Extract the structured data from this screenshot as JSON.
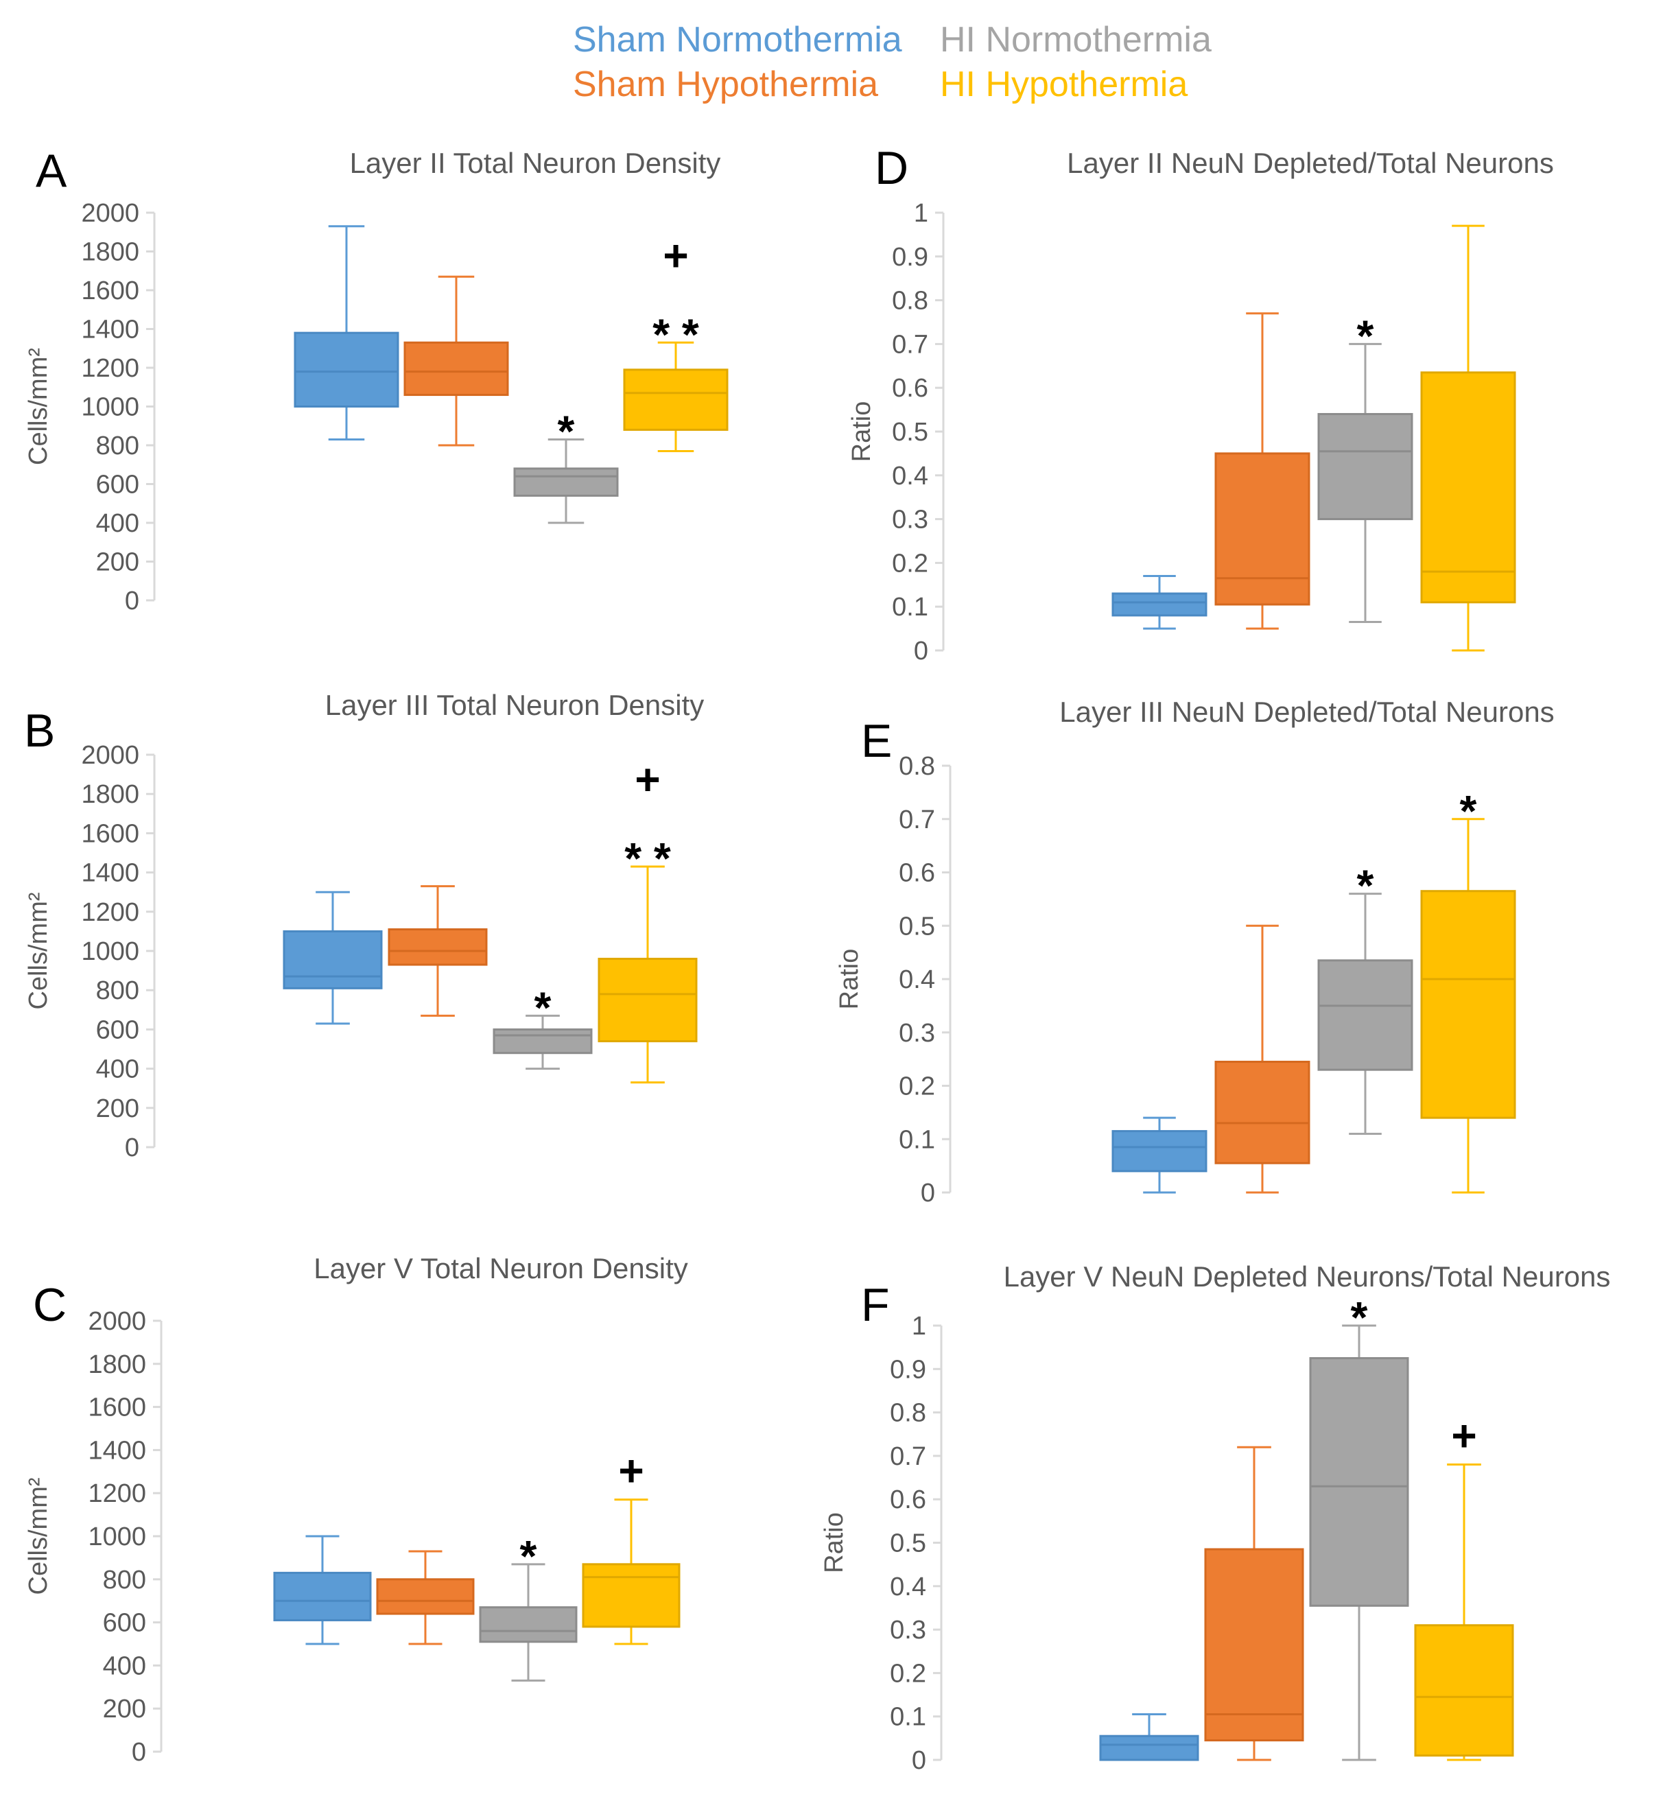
{
  "legend": [
    {
      "label": "Sham Normothermia",
      "color": "#5B9BD5"
    },
    {
      "label": "HI Normothermia",
      "color": "#A5A5A5"
    },
    {
      "label": "Sham Hypothermia",
      "color": "#ED7D31"
    },
    {
      "label": "HI Hypothermia",
      "color": "#FFC000"
    }
  ],
  "chart_data": [
    {
      "type": "box",
      "panel": "A",
      "title": "Layer II Total Neuron Density",
      "ylabel": "Cells/mm²",
      "ylim": [
        0,
        2000
      ],
      "ticks": [
        "0",
        "200",
        "400",
        "600",
        "800",
        "1000",
        "1200",
        "1400",
        "1600",
        "1800",
        "2000"
      ],
      "series": [
        {
          "name": "Sham Normothermia",
          "min": 830,
          "q1": 1000,
          "median": 1180,
          "q3": 1380,
          "max": 1930,
          "annotations": []
        },
        {
          "name": "Sham Hypothermia",
          "min": 800,
          "q1": 1060,
          "median": 1180,
          "q3": 1330,
          "max": 1670,
          "annotations": []
        },
        {
          "name": "HI Normothermia",
          "min": 400,
          "q1": 540,
          "median": 640,
          "q3": 680,
          "max": 830,
          "annotations": [
            "*"
          ]
        },
        {
          "name": "HI Hypothermia",
          "min": 770,
          "q1": 880,
          "median": 1070,
          "q3": 1190,
          "max": 1330,
          "annotations": [
            "**",
            "+"
          ]
        }
      ]
    },
    {
      "type": "box",
      "panel": "B",
      "title": "Layer III Total Neuron Density",
      "ylabel": "Cells/mm²",
      "ylim": [
        0,
        2000
      ],
      "ticks": [
        "0",
        "200",
        "400",
        "600",
        "800",
        "1000",
        "1200",
        "1400",
        "1600",
        "1800",
        "2000"
      ],
      "series": [
        {
          "name": "Sham Normothermia",
          "min": 630,
          "q1": 810,
          "median": 870,
          "q3": 1100,
          "max": 1300,
          "annotations": []
        },
        {
          "name": "Sham Hypothermia",
          "min": 670,
          "q1": 930,
          "median": 1000,
          "q3": 1110,
          "max": 1330,
          "annotations": []
        },
        {
          "name": "HI Normothermia",
          "min": 400,
          "q1": 480,
          "median": 570,
          "q3": 600,
          "max": 670,
          "annotations": [
            "*"
          ]
        },
        {
          "name": "HI Hypothermia",
          "min": 330,
          "q1": 540,
          "median": 780,
          "q3": 960,
          "max": 1430,
          "annotations": [
            "**",
            "+"
          ]
        }
      ]
    },
    {
      "type": "box",
      "panel": "C",
      "title": "Layer V Total Neuron Density",
      "ylabel": "Cells/mm²",
      "ylim": [
        0,
        2000
      ],
      "ticks": [
        "0",
        "200",
        "400",
        "600",
        "800",
        "1000",
        "1200",
        "1400",
        "1600",
        "1800",
        "2000"
      ],
      "series": [
        {
          "name": "Sham Normothermia",
          "min": 500,
          "q1": 610,
          "median": 700,
          "q3": 830,
          "max": 1000,
          "annotations": []
        },
        {
          "name": "Sham Hypothermia",
          "min": 500,
          "q1": 640,
          "median": 700,
          "q3": 800,
          "max": 930,
          "annotations": []
        },
        {
          "name": "HI Normothermia",
          "min": 330,
          "q1": 510,
          "median": 560,
          "q3": 670,
          "max": 870,
          "annotations": [
            "*"
          ]
        },
        {
          "name": "HI Hypothermia",
          "min": 500,
          "q1": 580,
          "median": 810,
          "q3": 870,
          "max": 1170,
          "annotations": [
            "+"
          ]
        }
      ]
    },
    {
      "type": "box",
      "panel": "D",
      "title": "Layer II NeuN Depleted/Total Neurons",
      "ylabel": "Ratio",
      "ylim": [
        0,
        1
      ],
      "ticks": [
        "0",
        "0.1",
        "0.2",
        "0.3",
        "0.4",
        "0.5",
        "0.6",
        "0.7",
        "0.8",
        "0.9",
        "1"
      ],
      "series": [
        {
          "name": "Sham Normothermia",
          "min": 0.05,
          "q1": 0.08,
          "median": 0.11,
          "q3": 0.13,
          "max": 0.17,
          "annotations": []
        },
        {
          "name": "Sham Hypothermia",
          "min": 0.05,
          "q1": 0.105,
          "median": 0.165,
          "q3": 0.45,
          "max": 0.77,
          "annotations": []
        },
        {
          "name": "HI Normothermia",
          "min": 0.065,
          "q1": 0.3,
          "median": 0.455,
          "q3": 0.54,
          "max": 0.7,
          "annotations": [
            "*"
          ]
        },
        {
          "name": "HI Hypothermia",
          "min": 0.0,
          "q1": 0.11,
          "median": 0.18,
          "q3": 0.635,
          "max": 0.97,
          "annotations": []
        }
      ]
    },
    {
      "type": "box",
      "panel": "E",
      "title": "Layer III NeuN Depleted/Total Neurons",
      "ylabel": "Ratio",
      "ylim": [
        0,
        0.8
      ],
      "ticks": [
        "0",
        "0.1",
        "0.2",
        "0.3",
        "0.4",
        "0.5",
        "0.6",
        "0.7",
        "0.8"
      ],
      "series": [
        {
          "name": "Sham Normothermia",
          "min": 0.0,
          "q1": 0.04,
          "median": 0.085,
          "q3": 0.115,
          "max": 0.14,
          "annotations": []
        },
        {
          "name": "Sham Hypothermia",
          "min": 0.0,
          "q1": 0.055,
          "median": 0.13,
          "q3": 0.245,
          "max": 0.5,
          "annotations": []
        },
        {
          "name": "HI Normothermia",
          "min": 0.11,
          "q1": 0.23,
          "median": 0.35,
          "q3": 0.435,
          "max": 0.56,
          "annotations": [
            "*"
          ]
        },
        {
          "name": "HI Hypothermia",
          "min": 0.0,
          "q1": 0.14,
          "median": 0.4,
          "q3": 0.565,
          "max": 0.7,
          "annotations": [
            "*"
          ]
        }
      ]
    },
    {
      "type": "box",
      "panel": "F",
      "title": "Layer V NeuN Depleted Neurons/Total Neurons",
      "ylabel": "Ratio",
      "ylim": [
        0,
        1
      ],
      "ticks": [
        "0",
        "0.1",
        "0.2",
        "0.3",
        "0.4",
        "0.5",
        "0.6",
        "0.7",
        "0.8",
        "0.9",
        "1"
      ],
      "series": [
        {
          "name": "Sham Normothermia",
          "min": 0.0,
          "q1": 0.0,
          "median": 0.035,
          "q3": 0.055,
          "max": 0.105,
          "annotations": []
        },
        {
          "name": "Sham Hypothermia",
          "min": 0.0,
          "q1": 0.045,
          "median": 0.105,
          "q3": 0.485,
          "max": 0.72,
          "annotations": []
        },
        {
          "name": "HI Normothermia",
          "min": 0.0,
          "q1": 0.355,
          "median": 0.63,
          "q3": 0.925,
          "max": 1.0,
          "annotations": [
            "*"
          ]
        },
        {
          "name": "HI Hypothermia",
          "min": 0.0,
          "q1": 0.01,
          "median": 0.145,
          "q3": 0.31,
          "max": 0.68,
          "annotations": [
            "+"
          ]
        }
      ]
    }
  ]
}
